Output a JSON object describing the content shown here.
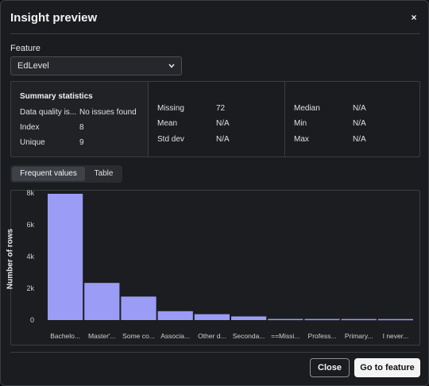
{
  "dialog": {
    "title": "Insight preview",
    "close_icon": "close-icon",
    "close_glyph": "×"
  },
  "feature": {
    "label": "Feature",
    "selected": "EdLevel"
  },
  "summary": {
    "heading": "Summary statistics",
    "col1": [
      {
        "label": "Data quality is...",
        "value": "No issues found"
      },
      {
        "label": "Index",
        "value": "8"
      },
      {
        "label": "Unique",
        "value": "9"
      }
    ],
    "col2": [
      {
        "label": "Missing",
        "value": "72"
      },
      {
        "label": "Mean",
        "value": "N/A"
      },
      {
        "label": "Std dev",
        "value": "N/A"
      }
    ],
    "col3": [
      {
        "label": "Median",
        "value": "N/A"
      },
      {
        "label": "Min",
        "value": "N/A"
      },
      {
        "label": "Max",
        "value": "N/A"
      }
    ]
  },
  "tabs": [
    {
      "label": "Frequent values",
      "active": true
    },
    {
      "label": "Table",
      "active": false
    }
  ],
  "chart_data": {
    "type": "bar",
    "title": "",
    "xlabel": "",
    "ylabel": "Number of rows",
    "ylim": [
      0,
      8200
    ],
    "yticks": [
      0,
      2000,
      4000,
      6000,
      8000
    ],
    "ytick_labels": [
      "0",
      "2k",
      "4k",
      "6k",
      "8k"
    ],
    "categories": [
      "Bachelo...",
      "Master'...",
      "Some co...",
      "Associa...",
      "Other d...",
      "Seconda...",
      "==Missi...",
      "Profess...",
      "Primary...",
      "I never..."
    ],
    "values": [
      7950,
      2340,
      1480,
      560,
      370,
      230,
      72,
      70,
      68,
      65
    ],
    "bar_color": "#9a9cf5",
    "grid": false,
    "legend": "none"
  },
  "buttons": {
    "close": "Close",
    "go_to_feature": "Go to feature"
  }
}
